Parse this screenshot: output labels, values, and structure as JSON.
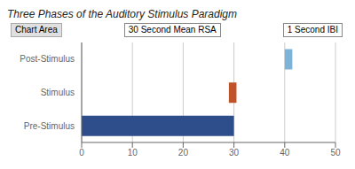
{
  "chart_data": {
    "type": "bar",
    "orientation": "horizontal",
    "title": "Three Phases of the Auditory Stimulus Paradigm",
    "categories": [
      "Pre-Stimulus",
      "Stimulus",
      "Post-Stimulus"
    ],
    "starts": [
      0,
      29,
      40
    ],
    "values": [
      30,
      1.5,
      1.5
    ],
    "colors": [
      "#2E4D8B",
      "#C0522A",
      "#7EB3D8"
    ],
    "xlim": [
      0,
      50
    ],
    "xticks": [
      0,
      10,
      20,
      30,
      40,
      50
    ],
    "grid": true,
    "annotations": [
      "30 Second Mean RSA",
      "1 Second IBI",
      "Chart Area"
    ]
  }
}
